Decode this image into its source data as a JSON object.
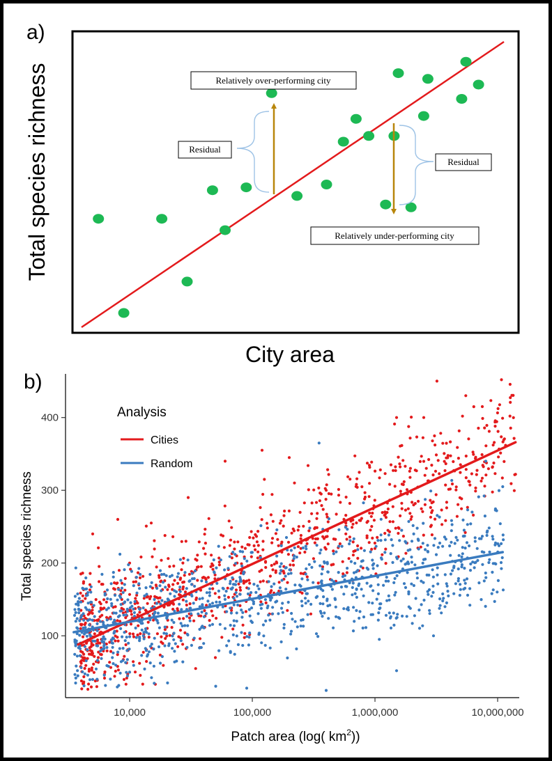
{
  "panel_a": {
    "label": "a)",
    "ylabel": "Total species richness",
    "xlabel": "City area",
    "callouts": {
      "over": "Relatively over-performing city",
      "under": "Relatively under-performing city",
      "residual_left": "Residual",
      "residual_right": "Residual"
    },
    "colors": {
      "points": "#1db954",
      "line": "#e31a1c",
      "arrow": "#b8860b",
      "brace": "#9ec3e6"
    }
  },
  "panel_b": {
    "label": "b)",
    "ylabel": "Total species richness",
    "xlabel_main": "Patch area (log( km",
    "xlabel_sup": "2",
    "xlabel_end": "))",
    "legend": {
      "title": "Analysis",
      "items": [
        "Cities",
        "Random"
      ]
    },
    "x_ticks": [
      "10,000",
      "100,000",
      "1,000,000",
      "10,000,000"
    ],
    "y_ticks": [
      "100",
      "200",
      "300",
      "400"
    ]
  },
  "chart_data": [
    {
      "type": "scatter",
      "title": "",
      "xlabel": "City area",
      "ylabel": "Total species richness",
      "scale": "schematic (unitless 0-100)",
      "points": [
        [
          4,
          38
        ],
        [
          10,
          5
        ],
        [
          19,
          38
        ],
        [
          25,
          16
        ],
        [
          31,
          48
        ],
        [
          34,
          34
        ],
        [
          39,
          49
        ],
        [
          45,
          82
        ],
        [
          51,
          46
        ],
        [
          58,
          50
        ],
        [
          62,
          65
        ],
        [
          65,
          73
        ],
        [
          68,
          67
        ],
        [
          72,
          43
        ],
        [
          74,
          67
        ],
        [
          75,
          89
        ],
        [
          78,
          42
        ],
        [
          81,
          74
        ],
        [
          82,
          87
        ],
        [
          90,
          80
        ],
        [
          91,
          93
        ],
        [
          94,
          85
        ]
      ],
      "fit_line": {
        "from": [
          0,
          0
        ],
        "to": [
          100,
          100
        ]
      },
      "residuals": [
        {
          "label": "Relatively over-performing city",
          "point": [
            45,
            82
          ],
          "line_y": 46
        },
        {
          "label": "Relatively under-performing city",
          "point": [
            78,
            42
          ],
          "line_y": 76
        }
      ]
    },
    {
      "type": "scatter",
      "title": "",
      "xlabel": "Patch area (log( km2))",
      "ylabel": "Total species richness",
      "x_scale": "log",
      "xlim": [
        3000,
        15000000
      ],
      "ylim": [
        15,
        460
      ],
      "legend_title": "Analysis",
      "legend_position": "top-left",
      "grid": false,
      "series": [
        {
          "name": "Cities",
          "color": "#e31a1c",
          "fit": {
            "x": [
              3800,
              14000000
            ],
            "y": [
              88,
              366
            ]
          },
          "n_points": 950,
          "cloud_log10_x": [
            3.6,
            7.15
          ],
          "sample_points": [
            [
              4000,
              185
            ],
            [
              5000,
              240
            ],
            [
              8000,
              260
            ],
            [
              10000,
              200
            ],
            [
              15000,
              255
            ],
            [
              30000,
              290
            ],
            [
              60000,
              340
            ],
            [
              120000,
              355
            ],
            [
              200000,
              345
            ],
            [
              400000,
              300
            ],
            [
              1500000,
              400
            ],
            [
              2500000,
              400
            ],
            [
              3200000,
              450
            ],
            [
              5500000,
              430
            ],
            [
              7500000,
              415
            ],
            [
              14000000,
              322
            ],
            [
              9000,
              40
            ],
            [
              50000,
              70
            ],
            [
              300000,
              130
            ],
            [
              1000000,
              220
            ]
          ]
        },
        {
          "name": "Random",
          "color": "#3a7bbf",
          "fit": {
            "x": [
              3500,
              11000000
            ],
            "y": [
              105,
              215
            ]
          },
          "n_points": 1000,
          "cloud_log10_x": [
            3.55,
            7.05
          ],
          "sample_points": [
            [
              5000,
              40
            ],
            [
              10000,
              50
            ],
            [
              90000,
              28
            ],
            [
              400000,
              25
            ],
            [
              1500000,
              52
            ],
            [
              350000,
              365
            ],
            [
              8000000,
              340
            ],
            [
              11000000,
              305
            ],
            [
              2000000,
              230
            ],
            [
              700000,
              180
            ],
            [
              60000,
              110
            ],
            [
              20000,
              130
            ],
            [
              4000,
              125
            ],
            [
              3000000,
              100
            ],
            [
              6000000,
              190
            ]
          ]
        }
      ]
    }
  ]
}
